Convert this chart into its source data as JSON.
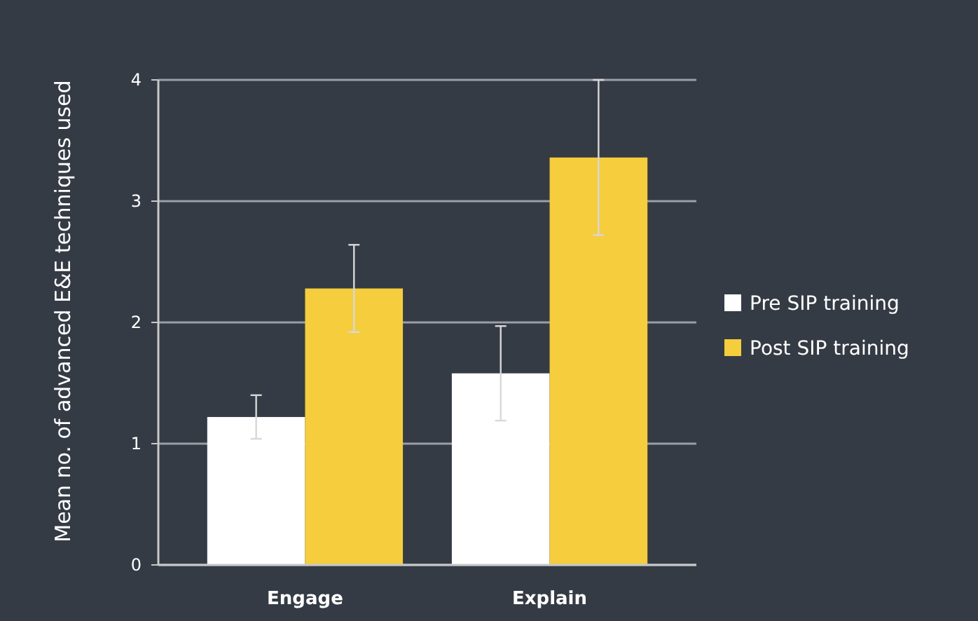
{
  "chart_data": {
    "type": "bar",
    "ylabel": "Mean no. of advanced E&E techniques used",
    "categories": [
      "Engage",
      "Explain"
    ],
    "series": [
      {
        "name": "Pre SIP training",
        "color": "#ffffff",
        "values": [
          1.22,
          1.58
        ],
        "errors": [
          0.18,
          0.39
        ]
      },
      {
        "name": "Post SIP training",
        "color": "#f5cd3d",
        "values": [
          2.28,
          3.36
        ],
        "errors": [
          0.36,
          0.64
        ]
      }
    ],
    "ylim": [
      0,
      4
    ],
    "yticks": [
      0,
      1,
      2,
      3,
      4
    ],
    "grid": "y",
    "legend": "right"
  }
}
